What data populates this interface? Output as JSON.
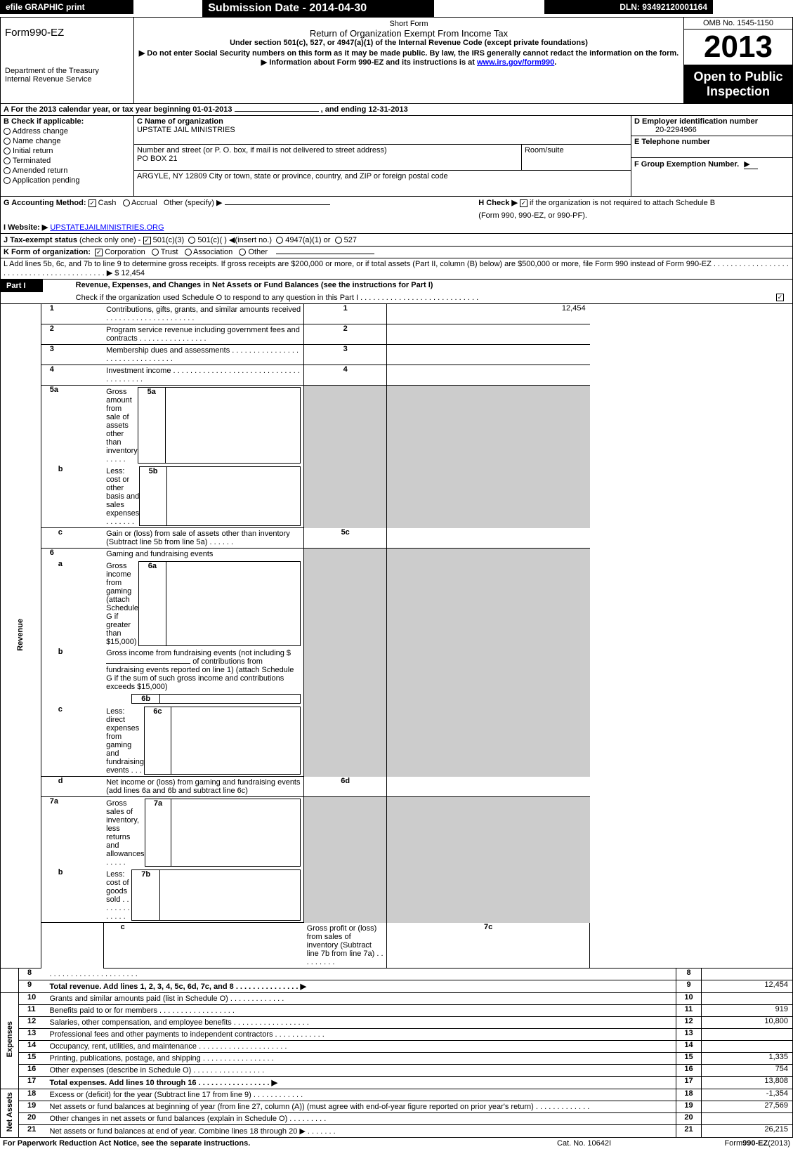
{
  "header": {
    "efile": "efile GRAPHIC print",
    "submission": "Submission Date - 2014-04-30",
    "dln": "DLN: 93492120001164"
  },
  "title_block": {
    "form_name": "Form990-EZ",
    "dept": "Department of the Treasury",
    "irs": "Internal Revenue Service",
    "short_form": "Short Form",
    "return_title": "Return of Organization Exempt From Income Tax",
    "under_section": "Under section 501(c), 527, or 4947(a)(1) of the Internal Revenue Code (except private foundations)",
    "do_not_enter": "▶ Do not enter Social Security numbers on this form as it may be made public. By law, the IRS generally cannot redact the information on the form.",
    "info_about": "▶ Information about Form 990-EZ and its instructions is at ",
    "info_link": "www.irs.gov/form990",
    "omb": "OMB No. 1545-1150",
    "year": "2013",
    "open": "Open to Public Inspection"
  },
  "section_a": {
    "line_a": "A For the 2013 calendar year, or tax year beginning 01-01-2013",
    "ending": ", and ending 12-31-2013",
    "b_check": "B  Check if applicable:",
    "b_items": [
      "Address change",
      "Name change",
      "Initial return",
      "Terminated",
      "Amended return",
      "Application pending"
    ],
    "c_name_label": "C Name of organization",
    "c_name": "UPSTATE JAIL MINISTRIES",
    "c_street_label": "Number and street (or P. O. box, if mail is not delivered to street address)",
    "c_street": "PO BOX 21",
    "c_room": "Room/suite",
    "c_city_label": "ARGYLE, NY  12809 City or town, state or province, country, and ZIP or foreign postal code",
    "d_label": "D Employer identification number",
    "d_ein": "20-2294966",
    "e_label": "E Telephone number",
    "f_label": "F Group Exemption Number.",
    "g_label": "G Accounting Method:",
    "g_cash": "Cash",
    "g_accrual": "Accrual",
    "g_other": "Other (specify) ▶",
    "h_label": "H   Check ▶",
    "h_text": "if the organization is not required to attach Schedule B",
    "h_sub": "(Form 990, 990-EZ, or 990-PF).",
    "i_label": "I Website: ▶",
    "i_site": "UPSTATEJAILMINISTRIES.ORG",
    "j_label": "J Tax-exempt status",
    "j_text": "(check only one) -",
    "j_501c3": "501(c)(3)",
    "j_501c": "501(c)(   ) ◀(insert no.)",
    "j_4947": "4947(a)(1) or",
    "j_527": "527",
    "k_label": "K Form of organization:",
    "k_items": [
      "Corporation",
      "Trust",
      "Association",
      "Other"
    ],
    "l_text": "L Add lines 5b, 6c, and 7b to line 9 to determine gross receipts. If gross receipts are $200,000 or more, or if total assets (Part II, column (B) below) are $500,000 or more, file Form 990 instead of Form 990-EZ  . . . . . . . . . . . . . . . . . . . . . . . . . . . . . . . . . . . . . . . . . . ▶ $ 12,454"
  },
  "part1": {
    "title": "Part I",
    "heading": "Revenue, Expenses, and Changes in Net Assets or Fund Balances (see the instructions for Part I)",
    "check_text": "Check if the organization used Schedule O to respond to any question in this Part I . . . . . . . . . . . . . . . . . . . . . . . . . . . .",
    "revenue_label": "Revenue",
    "expenses_label": "Expenses",
    "net_assets_label": "Net Assets",
    "rows": {
      "1": {
        "text": "Contributions, gifts, grants, and similar amounts received  . . . . . . . . . . . . . . . . . . . . .",
        "val": "12,454"
      },
      "2": {
        "text": "Program service revenue including government fees and contracts  . . . . . . . . . . . . . . . .",
        "val": ""
      },
      "3": {
        "text": "Membership dues and assessments  . . . . . . . . . . . . . . . . . . . . . . . . . . . . . . . .",
        "val": ""
      },
      "4": {
        "text": "Investment income  . . . . . . . . . . . . . . . . . . . . . . . . . . . . . . . . . . . . . . .",
        "val": ""
      },
      "5a": {
        "text": "Gross amount from sale of assets other than inventory  . . . . .",
        "val": ""
      },
      "5b": {
        "text": "Less: cost or other basis and sales expenses  . . . . . . .",
        "val": ""
      },
      "5c": {
        "text": "Gain or (loss) from sale of assets other than inventory (Subtract line 5b from line 5a)  .  .  .  .  .  .",
        "val": ""
      },
      "6": {
        "text": "Gaming and fundraising events",
        "val": ""
      },
      "6a": {
        "text": "Gross income from gaming (attach Schedule G if greater than $15,000)",
        "val": ""
      },
      "6b": {
        "text": "Gross income from fundraising events (not including $",
        "text2": "of contributions from fundraising events reported on line 1) (attach Schedule G if the sum of such gross income and contributions exceeds $15,000)",
        "val": ""
      },
      "6c": {
        "text": "Less: direct expenses from gaming and fundraising events     .  .  .",
        "val": ""
      },
      "6d": {
        "text": "Net income or (loss) from gaming and fundraising events (add lines 6a and 6b and subtract line 6c)",
        "val": ""
      },
      "7a": {
        "text": "Gross sales of inventory, less returns and allowances  .  .  .  .  .",
        "val": ""
      },
      "7b": {
        "text": "Less: cost of goods sold           .  .  .  .  .  .  .  .  .  .  .  .  .",
        "val": ""
      },
      "7c": {
        "text": "Gross profit or (loss) from sales of inventory (Subtract line 7b from line 7a)  .  .  .  .  .  .  .  .  .",
        "val": ""
      },
      "8": {
        "text": "                                          .  .  .  .  .  .  .  .  .  .  .  .  .  .  .  .  .  .  .  .  .",
        "val": ""
      },
      "9": {
        "text": "Total revenue. Add lines 1, 2, 3, 4, 5c, 6d, 7c, and 8   .  .  .  .  .  .  .  .  .  .  .  .  .  .  .    ▶",
        "val": "12,454"
      },
      "10": {
        "text": "Grants and similar amounts paid (list in Schedule O)               .  .  .  .  .  .  .  .  .  .  .  .  .",
        "val": ""
      },
      "11": {
        "text": "Benefits paid to or for members                     .  .  .  .  .  .  .  .  .  .  .  .  .  .  .  .  .  .",
        "val": "919"
      },
      "12": {
        "text": "Salaries, other compensation, and employee benefits .  .  .  .  .  .  .  .  .  .  .  .  .  .  .  .  .  .",
        "val": "10,800"
      },
      "13": {
        "text": "Professional fees and other payments to independent contractors  .  .  .  .  .  .  .  .  .  .  .  .",
        "val": ""
      },
      "14": {
        "text": "Occupancy, rent, utilities, and maintenance .  .  .  .  .  .  .  .  .  .  .  .  .  .  .  .  .  .  .  .  .",
        "val": ""
      },
      "15": {
        "text": "Printing, publications, postage, and shipping           .  .  .  .  .  .  .  .  .  .  .  .  .  .  .  .  .",
        "val": "1,335"
      },
      "16": {
        "text": "Other expenses (describe in Schedule O)               .  .  .  .  .  .  .  .  .  .  .  .  .  .  .  .  .",
        "val": "754"
      },
      "17": {
        "text": "Total expenses. Add lines 10 through 16          .  .  .  .  .  .  .  .  .  .  .  .  .  .  .  .  .    ▶",
        "val": "13,808"
      },
      "18": {
        "text": "Excess or (deficit) for the year (Subtract line 17 from line 9)         .  .  .  .  .  .  .  .  .  .  .  .",
        "val": "-1,354"
      },
      "19": {
        "text": "Net assets or fund balances at beginning of year (from line 27, column (A)) (must agree with end-of-year figure reported on prior year's return)                 .  .  .  .  .  .  .  .  .  .  .  .  .",
        "val": "27,569"
      },
      "20": {
        "text": "Other changes in net assets or fund balances (explain in Schedule O)      .  .  .  .  .  .  .  .  .",
        "val": ""
      },
      "21": {
        "text": "Net assets or fund balances at end of year. Combine lines 18 through 20 ▶       .  .  .  .  .  .  .",
        "val": "26,215"
      }
    }
  },
  "footer": {
    "paperwork": "For Paperwork Reduction Act Notice, see the separate instructions.",
    "cat": "Cat. No. 10642I",
    "form": "Form990-EZ(2013)"
  }
}
